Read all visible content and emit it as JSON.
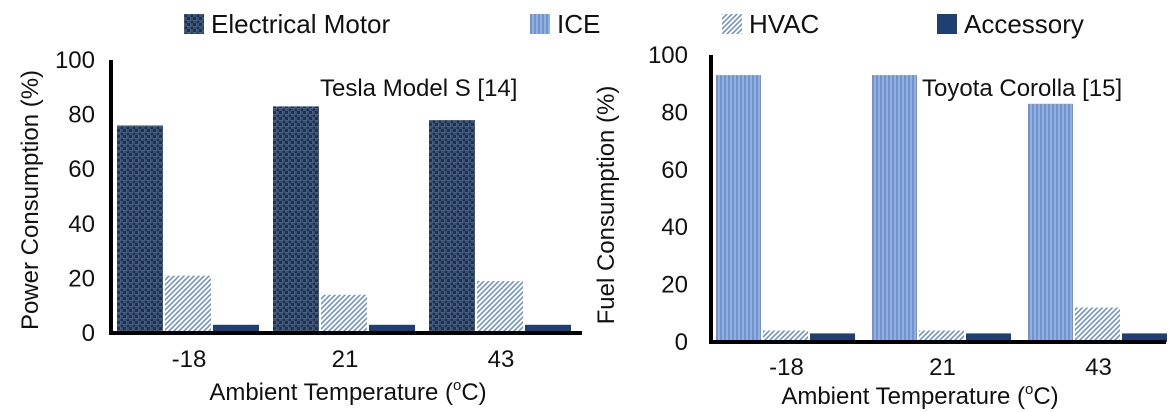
{
  "legend": [
    {
      "name": "Electrical Motor",
      "pattern": "pat-motor",
      "color": "#2d4668"
    },
    {
      "name": "ICE",
      "pattern": "pat-ice",
      "color": "#7f9fd4"
    },
    {
      "name": "HVAC",
      "pattern": "pat-hvac",
      "color": "#9ab2dd"
    },
    {
      "name": "Accessory",
      "pattern": "pat-acc",
      "color": "#1f3f73"
    }
  ],
  "chart_data": [
    {
      "type": "bar",
      "title": "Tesla Model S [14]",
      "xlabel_main": "Ambient Temperature (",
      "xlabel_sup": "o",
      "xlabel_tail": "C)",
      "ylabel": "Power Consumption (%)",
      "categories": [
        "-18",
        "21",
        "43"
      ],
      "ylim": [
        0,
        100
      ],
      "yticks": [
        0,
        20,
        40,
        60,
        80,
        100
      ],
      "series": [
        {
          "name": "Electrical Motor",
          "values": [
            76,
            83,
            78
          ]
        },
        {
          "name": "HVAC",
          "values": [
            21,
            14,
            19
          ]
        },
        {
          "name": "Accessory",
          "values": [
            3,
            3,
            3
          ]
        }
      ]
    },
    {
      "type": "bar",
      "title": "Toyota Corolla [15]",
      "xlabel_main": "Ambient Temperature (",
      "xlabel_sup": "o",
      "xlabel_tail": "C)",
      "ylabel": "Fuel Consumption (%)",
      "categories": [
        "-18",
        "21",
        "43"
      ],
      "ylim": [
        0,
        100
      ],
      "yticks": [
        0,
        20,
        40,
        60,
        80,
        100
      ],
      "series": [
        {
          "name": "ICE",
          "values": [
            93,
            93,
            83
          ]
        },
        {
          "name": "HVAC",
          "values": [
            4,
            4,
            12
          ]
        },
        {
          "name": "Accessory",
          "values": [
            3,
            3,
            3
          ]
        }
      ]
    }
  ]
}
